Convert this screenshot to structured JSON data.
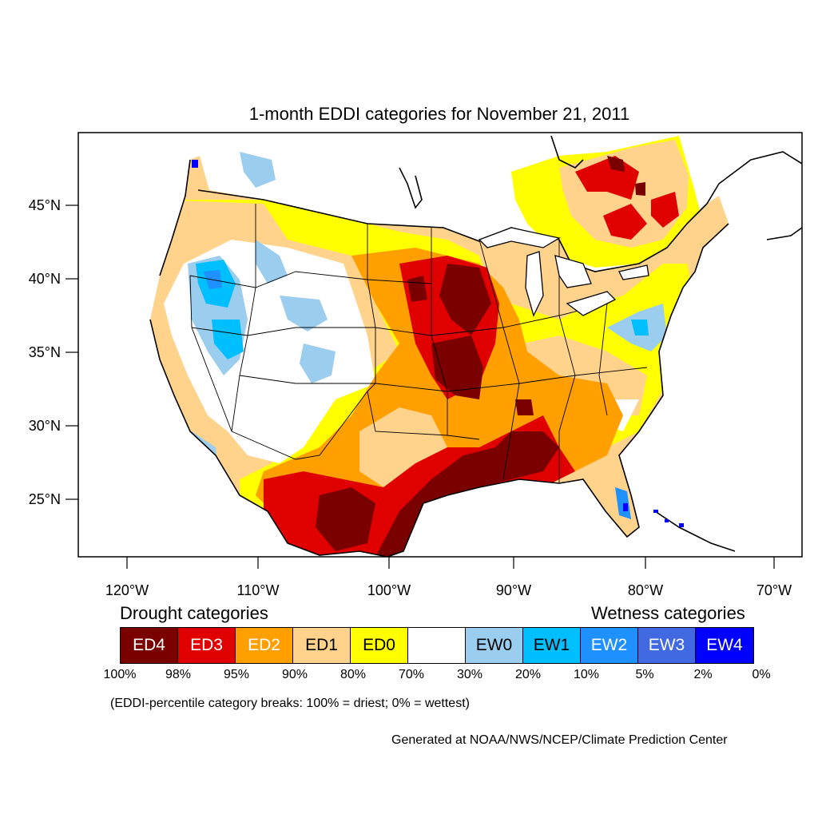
{
  "title": "1-month EDDI categories for November 21, 2011",
  "lat_ticks": [
    "45°N",
    "40°N",
    "35°N",
    "30°N",
    "25°N"
  ],
  "lon_ticks": [
    "120°W",
    "110°W",
    "100°W",
    "90°W",
    "80°W",
    "70°W"
  ],
  "legend": {
    "drought_title": "Drought categories",
    "wetness_title": "Wetness categories",
    "categories": [
      {
        "label": "ED4",
        "color": "#7a0000",
        "text_color": "#ffffff"
      },
      {
        "label": "ED3",
        "color": "#e00000",
        "text_color": "#ffffff"
      },
      {
        "label": "ED2",
        "color": "#ff9f00",
        "text_color": "#ffffff"
      },
      {
        "label": "ED1",
        "color": "#ffd38c",
        "text_color": "#000000"
      },
      {
        "label": "ED0",
        "color": "#ffff00",
        "text_color": "#000000"
      },
      {
        "label": "",
        "color": "#ffffff",
        "text_color": "#000000"
      },
      {
        "label": "EW0",
        "color": "#9bcdee",
        "text_color": "#000000"
      },
      {
        "label": "EW1",
        "color": "#00bfff",
        "text_color": "#000000"
      },
      {
        "label": "EW2",
        "color": "#1e90ff",
        "text_color": "#ffffff"
      },
      {
        "label": "EW3",
        "color": "#4169e1",
        "text_color": "#ffffff"
      },
      {
        "label": "EW4",
        "color": "#0000ff",
        "text_color": "#ffffff"
      }
    ],
    "percentiles": [
      "100%",
      "98%",
      "95%",
      "90%",
      "80%",
      "70%",
      "30%",
      "20%",
      "10%",
      "5%",
      "2%",
      "0%"
    ]
  },
  "note": "(EDDI-percentile category breaks: 100% = driest; 0% = wettest)",
  "credit": "Generated at NOAA/NWS/NCEP/Climate Prediction Center"
}
